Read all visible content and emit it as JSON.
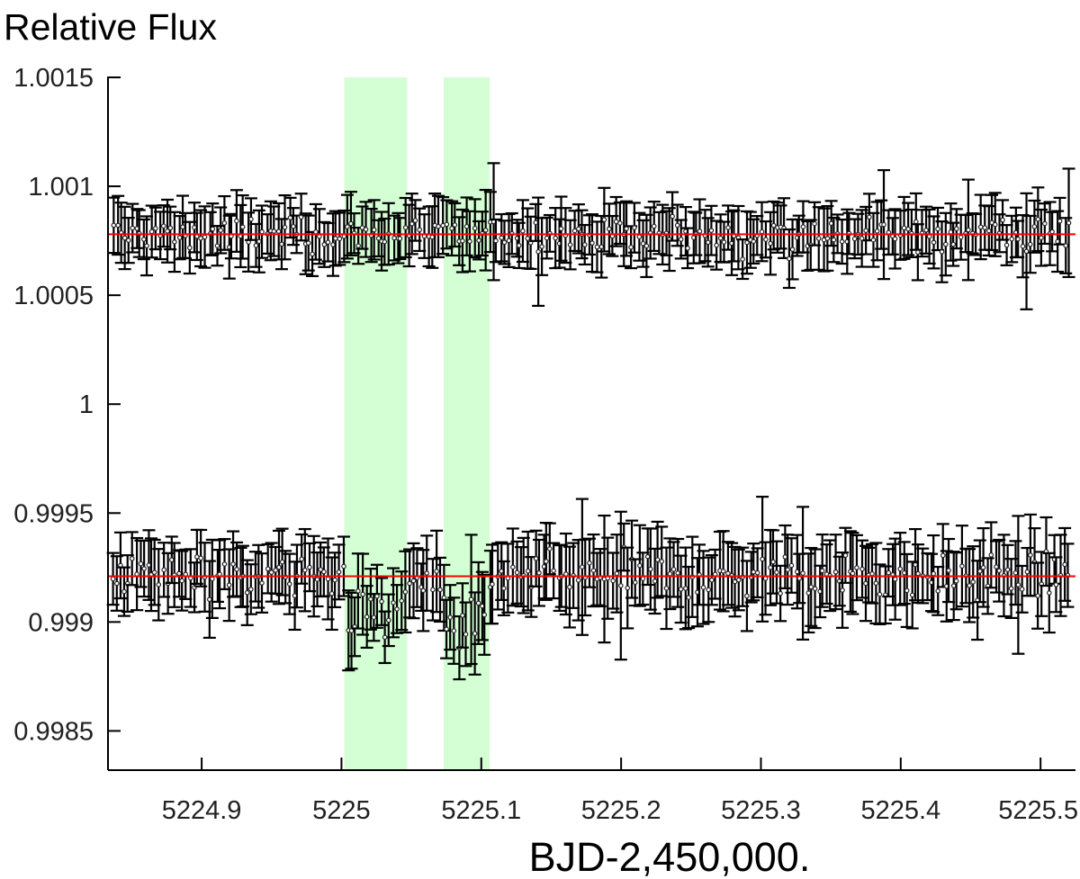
{
  "chart_data": {
    "type": "scatter",
    "ylabel": "Relative Flux",
    "xlabel": "BJD-2,450,000.",
    "xlim": [
      5224.833,
      5225.525
    ],
    "ylim": [
      0.99832,
      1.0015
    ],
    "xticks": [
      5224.9,
      5225.0,
      5225.1,
      5225.2,
      5225.3,
      5225.4,
      5225.5
    ],
    "xtick_labels": [
      "5224.9",
      "5225",
      "5225.1",
      "5225.2",
      "5225.3",
      "5225.4",
      "5225.5"
    ],
    "yticks": [
      0.9985,
      0.999,
      0.9995,
      1.0,
      1.0005,
      1.001,
      1.0015
    ],
    "ytick_labels": [
      "0.9985",
      "0.999",
      "0.9995",
      "1",
      "1.0005",
      "1.001",
      "1.0015"
    ],
    "shaded_intervals": [
      [
        5225.002,
        5225.047
      ],
      [
        5225.073,
        5225.106
      ]
    ],
    "series": [
      {
        "offset_level": 1.00078,
        "model_level": 1.00078,
        "model_color": "#ff0000",
        "typical_error": 0.00011,
        "point_count": 250,
        "dips": []
      },
      {
        "offset_level": 0.99921,
        "model_level": 0.99921,
        "model_color": "#ff0000",
        "typical_error": 0.00014,
        "point_count": 250,
        "dips": [
          [
            5225.002,
            5225.047,
            0.00018
          ],
          [
            5225.073,
            5225.106,
            0.00022
          ]
        ]
      }
    ],
    "shade_color": "#ccffcc",
    "grid": false
  }
}
